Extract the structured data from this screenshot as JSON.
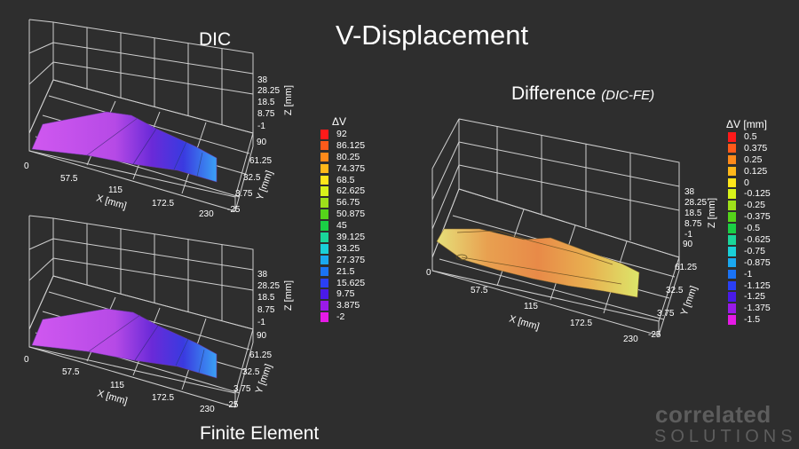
{
  "header": {
    "main_title": "V-Displacement",
    "dic_label": "DIC",
    "fe_label": "Finite Element",
    "diff_label": "Difference",
    "diff_sub": "(DIC-FE)"
  },
  "axes": {
    "x_label": "X [mm]",
    "y_label": "Y [mm]",
    "z_label": "Z [mm]",
    "x_ticks": [
      "0",
      "57.5",
      "115",
      "172.5",
      "230"
    ],
    "y_ticks": [
      "90",
      "61.25",
      "32.5",
      "3.75",
      "-25"
    ],
    "z_ticks": [
      "38",
      "28.25",
      "18.5",
      "8.75",
      "-1"
    ]
  },
  "legend_left": {
    "title": "ΔV",
    "items": [
      {
        "label": "92",
        "color": "#ff1a1a"
      },
      {
        "label": "86.125",
        "color": "#ff5a1a"
      },
      {
        "label": "80.25",
        "color": "#ff8a1a"
      },
      {
        "label": "74.375",
        "color": "#ffb81a"
      },
      {
        "label": "68.5",
        "color": "#ffe61a"
      },
      {
        "label": "62.625",
        "color": "#d8f21a"
      },
      {
        "label": "56.75",
        "color": "#9ee01a"
      },
      {
        "label": "50.875",
        "color": "#55d41a"
      },
      {
        "label": "45",
        "color": "#1acf45"
      },
      {
        "label": "39.125",
        "color": "#1ad69a"
      },
      {
        "label": "33.25",
        "color": "#1ad0d8"
      },
      {
        "label": "27.375",
        "color": "#1aa8f0"
      },
      {
        "label": "21.5",
        "color": "#1a73f5"
      },
      {
        "label": "15.625",
        "color": "#2a3ff5"
      },
      {
        "label": "9.75",
        "color": "#4a1ae8"
      },
      {
        "label": "3.875",
        "color": "#9a1ae8"
      },
      {
        "label": "-2",
        "color": "#e61ae6"
      }
    ]
  },
  "legend_right": {
    "title": "ΔV [mm]",
    "items": [
      {
        "label": "0.5",
        "color": "#ff1a1a"
      },
      {
        "label": "0.375",
        "color": "#ff5a1a"
      },
      {
        "label": "0.25",
        "color": "#ff8a1a"
      },
      {
        "label": "0.125",
        "color": "#ffb81a"
      },
      {
        "label": "0",
        "color": "#ffe61a"
      },
      {
        "label": "-0.125",
        "color": "#d8f21a"
      },
      {
        "label": "-0.25",
        "color": "#9ee01a"
      },
      {
        "label": "-0.375",
        "color": "#55d41a"
      },
      {
        "label": "-0.5",
        "color": "#1acf45"
      },
      {
        "label": "-0.625",
        "color": "#1ad69a"
      },
      {
        "label": "-0.75",
        "color": "#1ad0d8"
      },
      {
        "label": "-0.875",
        "color": "#1aa8f0"
      },
      {
        "label": "-1",
        "color": "#1a73f5"
      },
      {
        "label": "-1.125",
        "color": "#2a3ff5"
      },
      {
        "label": "-1.25",
        "color": "#4a1ae8"
      },
      {
        "label": "-1.375",
        "color": "#9a1ae8"
      },
      {
        "label": "-1.5",
        "color": "#e61ae6"
      }
    ]
  },
  "logo": {
    "line1": "correlated",
    "line2": "SOLUTIONS"
  }
}
